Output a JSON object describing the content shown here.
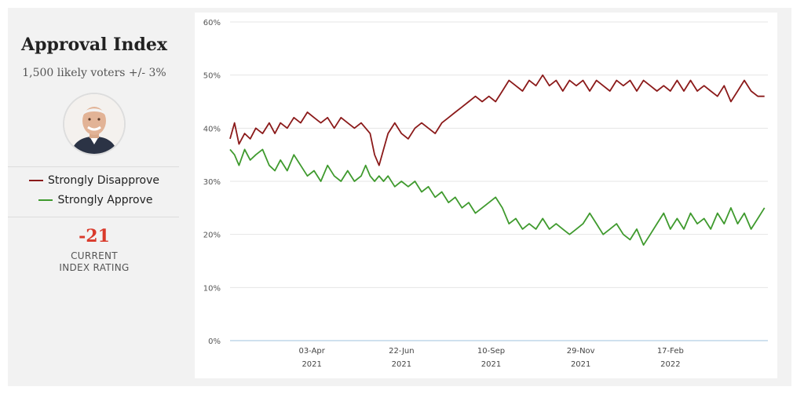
{
  "panel": {
    "title": "Approval Index",
    "subtitle": "1,500 likely voters +/- 3%",
    "legend": [
      {
        "label": "Strongly Disapprove",
        "color": "#8b1a1a"
      },
      {
        "label": "Strongly Approve",
        "color": "#3f9a2e"
      }
    ],
    "index_value": "-21",
    "index_caption": "CURRENT INDEX RATING",
    "avatar_icon": "portrait-icon"
  },
  "chart_data": {
    "type": "line",
    "title": "",
    "xlabel": "",
    "ylabel": "",
    "ylim": [
      0,
      60
    ],
    "yticks": [
      0,
      10,
      20,
      30,
      40,
      50,
      60
    ],
    "ytick_labels": [
      "0%",
      "10%",
      "20%",
      "30%",
      "40%",
      "50%",
      "60%"
    ],
    "xlim": [
      "2021-01-20",
      "2022-05-15"
    ],
    "xticks": [
      "2021-04-03",
      "2021-06-22",
      "2021-09-10",
      "2021-11-29",
      "2022-02-17"
    ],
    "xtick_labels": [
      [
        "03-Apr",
        "2021"
      ],
      [
        "22-Jun",
        "2021"
      ],
      [
        "10-Sep",
        "2021"
      ],
      [
        "29-Nov",
        "2021"
      ],
      [
        "17-Feb",
        "2022"
      ]
    ],
    "grid": true,
    "series": [
      {
        "name": "Strongly Disapprove",
        "color": "#8b1a1a",
        "points": [
          [
            "2021-01-20",
            38
          ],
          [
            "2021-01-24",
            41
          ],
          [
            "2021-01-28",
            37
          ],
          [
            "2021-02-02",
            39
          ],
          [
            "2021-02-07",
            38
          ],
          [
            "2021-02-12",
            40
          ],
          [
            "2021-02-18",
            39
          ],
          [
            "2021-02-24",
            41
          ],
          [
            "2021-03-01",
            39
          ],
          [
            "2021-03-06",
            41
          ],
          [
            "2021-03-12",
            40
          ],
          [
            "2021-03-18",
            42
          ],
          [
            "2021-03-24",
            41
          ],
          [
            "2021-03-30",
            43
          ],
          [
            "2021-04-05",
            42
          ],
          [
            "2021-04-11",
            41
          ],
          [
            "2021-04-17",
            42
          ],
          [
            "2021-04-23",
            40
          ],
          [
            "2021-04-29",
            42
          ],
          [
            "2021-05-05",
            41
          ],
          [
            "2021-05-11",
            40
          ],
          [
            "2021-05-17",
            41
          ],
          [
            "2021-05-21",
            40
          ],
          [
            "2021-05-25",
            39
          ],
          [
            "2021-05-29",
            35
          ],
          [
            "2021-06-02",
            33
          ],
          [
            "2021-06-06",
            36
          ],
          [
            "2021-06-10",
            39
          ],
          [
            "2021-06-16",
            41
          ],
          [
            "2021-06-22",
            39
          ],
          [
            "2021-06-28",
            38
          ],
          [
            "2021-07-04",
            40
          ],
          [
            "2021-07-10",
            41
          ],
          [
            "2021-07-16",
            40
          ],
          [
            "2021-07-22",
            39
          ],
          [
            "2021-07-28",
            41
          ],
          [
            "2021-08-03",
            42
          ],
          [
            "2021-08-09",
            43
          ],
          [
            "2021-08-15",
            44
          ],
          [
            "2021-08-21",
            45
          ],
          [
            "2021-08-27",
            46
          ],
          [
            "2021-09-02",
            45
          ],
          [
            "2021-09-08",
            46
          ],
          [
            "2021-09-14",
            45
          ],
          [
            "2021-09-20",
            47
          ],
          [
            "2021-09-26",
            49
          ],
          [
            "2021-10-02",
            48
          ],
          [
            "2021-10-08",
            47
          ],
          [
            "2021-10-14",
            49
          ],
          [
            "2021-10-20",
            48
          ],
          [
            "2021-10-26",
            50
          ],
          [
            "2021-11-01",
            48
          ],
          [
            "2021-11-07",
            49
          ],
          [
            "2021-11-13",
            47
          ],
          [
            "2021-11-19",
            49
          ],
          [
            "2021-11-25",
            48
          ],
          [
            "2021-12-01",
            49
          ],
          [
            "2021-12-07",
            47
          ],
          [
            "2021-12-13",
            49
          ],
          [
            "2021-12-19",
            48
          ],
          [
            "2021-12-25",
            47
          ],
          [
            "2021-12-31",
            49
          ],
          [
            "2022-01-06",
            48
          ],
          [
            "2022-01-12",
            49
          ],
          [
            "2022-01-18",
            47
          ],
          [
            "2022-01-24",
            49
          ],
          [
            "2022-01-30",
            48
          ],
          [
            "2022-02-05",
            47
          ],
          [
            "2022-02-11",
            48
          ],
          [
            "2022-02-17",
            47
          ],
          [
            "2022-02-23",
            49
          ],
          [
            "2022-03-01",
            47
          ],
          [
            "2022-03-07",
            49
          ],
          [
            "2022-03-13",
            47
          ],
          [
            "2022-03-19",
            48
          ],
          [
            "2022-03-25",
            47
          ],
          [
            "2022-03-31",
            46
          ],
          [
            "2022-04-06",
            48
          ],
          [
            "2022-04-12",
            45
          ],
          [
            "2022-04-18",
            47
          ],
          [
            "2022-04-24",
            49
          ],
          [
            "2022-04-30",
            47
          ],
          [
            "2022-05-06",
            46
          ],
          [
            "2022-05-12",
            46
          ]
        ]
      },
      {
        "name": "Strongly Approve",
        "color": "#3f9a2e",
        "points": [
          [
            "2021-01-20",
            36
          ],
          [
            "2021-01-24",
            35
          ],
          [
            "2021-01-28",
            33
          ],
          [
            "2021-02-02",
            36
          ],
          [
            "2021-02-07",
            34
          ],
          [
            "2021-02-12",
            35
          ],
          [
            "2021-02-18",
            36
          ],
          [
            "2021-02-24",
            33
          ],
          [
            "2021-03-01",
            32
          ],
          [
            "2021-03-06",
            34
          ],
          [
            "2021-03-12",
            32
          ],
          [
            "2021-03-18",
            35
          ],
          [
            "2021-03-24",
            33
          ],
          [
            "2021-03-30",
            31
          ],
          [
            "2021-04-05",
            32
          ],
          [
            "2021-04-11",
            30
          ],
          [
            "2021-04-17",
            33
          ],
          [
            "2021-04-23",
            31
          ],
          [
            "2021-04-29",
            30
          ],
          [
            "2021-05-05",
            32
          ],
          [
            "2021-05-11",
            30
          ],
          [
            "2021-05-17",
            31
          ],
          [
            "2021-05-21",
            33
          ],
          [
            "2021-05-25",
            31
          ],
          [
            "2021-05-29",
            30
          ],
          [
            "2021-06-02",
            31
          ],
          [
            "2021-06-06",
            30
          ],
          [
            "2021-06-10",
            31
          ],
          [
            "2021-06-16",
            29
          ],
          [
            "2021-06-22",
            30
          ],
          [
            "2021-06-28",
            29
          ],
          [
            "2021-07-04",
            30
          ],
          [
            "2021-07-10",
            28
          ],
          [
            "2021-07-16",
            29
          ],
          [
            "2021-07-22",
            27
          ],
          [
            "2021-07-28",
            28
          ],
          [
            "2021-08-03",
            26
          ],
          [
            "2021-08-09",
            27
          ],
          [
            "2021-08-15",
            25
          ],
          [
            "2021-08-21",
            26
          ],
          [
            "2021-08-27",
            24
          ],
          [
            "2021-09-02",
            25
          ],
          [
            "2021-09-08",
            26
          ],
          [
            "2021-09-14",
            27
          ],
          [
            "2021-09-20",
            25
          ],
          [
            "2021-09-26",
            22
          ],
          [
            "2021-10-02",
            23
          ],
          [
            "2021-10-08",
            21
          ],
          [
            "2021-10-14",
            22
          ],
          [
            "2021-10-20",
            21
          ],
          [
            "2021-10-26",
            23
          ],
          [
            "2021-11-01",
            21
          ],
          [
            "2021-11-07",
            22
          ],
          [
            "2021-11-13",
            21
          ],
          [
            "2021-11-19",
            20
          ],
          [
            "2021-11-25",
            21
          ],
          [
            "2021-12-01",
            22
          ],
          [
            "2021-12-07",
            24
          ],
          [
            "2021-12-13",
            22
          ],
          [
            "2021-12-19",
            20
          ],
          [
            "2021-12-25",
            21
          ],
          [
            "2021-12-31",
            22
          ],
          [
            "2022-01-06",
            20
          ],
          [
            "2022-01-12",
            19
          ],
          [
            "2022-01-18",
            21
          ],
          [
            "2022-01-24",
            18
          ],
          [
            "2022-01-30",
            20
          ],
          [
            "2022-02-05",
            22
          ],
          [
            "2022-02-11",
            24
          ],
          [
            "2022-02-17",
            21
          ],
          [
            "2022-02-23",
            23
          ],
          [
            "2022-03-01",
            21
          ],
          [
            "2022-03-07",
            24
          ],
          [
            "2022-03-13",
            22
          ],
          [
            "2022-03-19",
            23
          ],
          [
            "2022-03-25",
            21
          ],
          [
            "2022-03-31",
            24
          ],
          [
            "2022-04-06",
            22
          ],
          [
            "2022-04-12",
            25
          ],
          [
            "2022-04-18",
            22
          ],
          [
            "2022-04-24",
            24
          ],
          [
            "2022-04-30",
            21
          ],
          [
            "2022-05-06",
            23
          ],
          [
            "2022-05-12",
            25
          ]
        ]
      }
    ]
  }
}
